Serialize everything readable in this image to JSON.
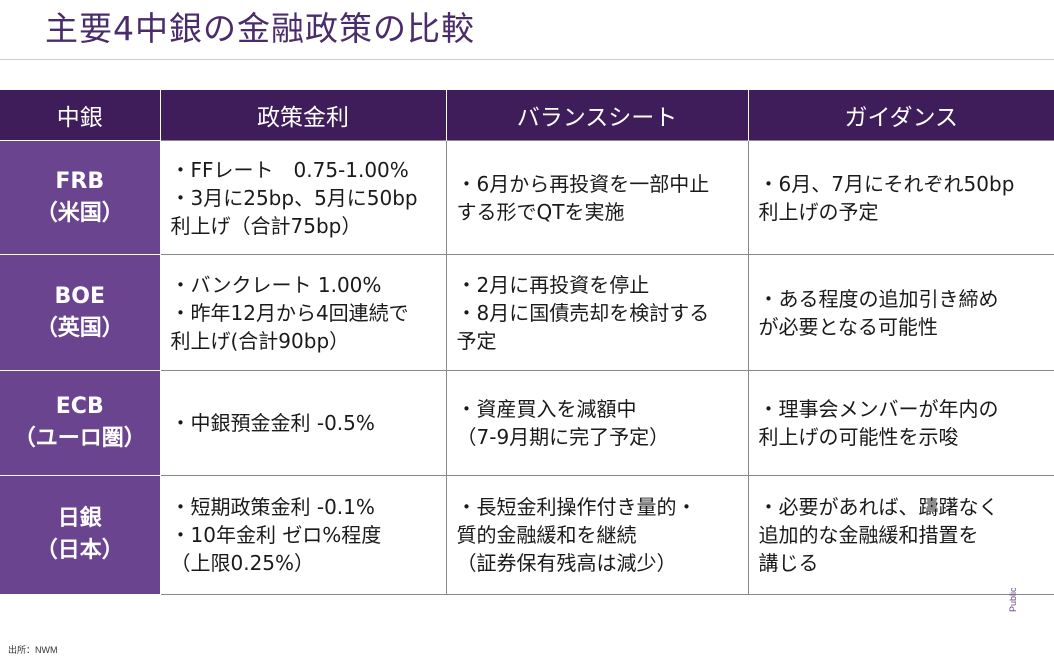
{
  "title": "主要4中銀の金融政策の比較",
  "headers": [
    "中銀",
    "政策金利",
    "バランスシート",
    "ガイダンス"
  ],
  "rows": [
    {
      "bank_line1": "FRB",
      "bank_line2": "（米国）",
      "policy_rate": [
        "・FFレート　0.75-1.00%",
        "・3月に25bp、5月に50bp",
        "利上げ（合計75bp）"
      ],
      "balance_sheet": [
        "・6月から再投資を一部中止",
        "する形でQTを実施"
      ],
      "guidance": [
        "・6月、7月にそれぞれ50bp",
        "利上げの予定"
      ]
    },
    {
      "bank_line1": "BOE",
      "bank_line2": "（英国）",
      "policy_rate": [
        "・バンクレート 1.00%",
        "・昨年12月から4回連続で",
        "利上げ(合計90bp）"
      ],
      "balance_sheet": [
        "・2月に再投資を停止",
        "・8月に国債売却を検討する",
        "予定"
      ],
      "guidance": [
        "・ある程度の追加引き締め",
        "が必要となる可能性"
      ]
    },
    {
      "bank_line1": "ECB",
      "bank_line2": "（ユーロ圏）",
      "policy_rate": [
        "・中銀預金金利 -0.5%"
      ],
      "balance_sheet": [
        "・資産買入を減額中",
        "（7-9月期に完了予定）"
      ],
      "guidance": [
        "・理事会メンバーが年内の",
        "利上げの可能性を示唆"
      ]
    },
    {
      "bank_line1": "日銀",
      "bank_line2": "（日本）",
      "policy_rate": [
        "・短期政策金利 -0.1%",
        "・10年金利 ゼロ%程度",
        "（上限0.25%）"
      ],
      "balance_sheet": [
        "・長短金利操作付き量的・",
        "質的金融緩和を継続",
        "（証券保有残高は減少）"
      ],
      "guidance": [
        "・必要があれば、躊躇なく",
        "追加的な金融緩和措置を",
        "講じる"
      ]
    }
  ],
  "source": "出所：NWM",
  "classification": "Public",
  "colors": {
    "header_bg": "#3e1d5a",
    "bank_bg": "#6b4490",
    "title": "#4a2c6b"
  }
}
